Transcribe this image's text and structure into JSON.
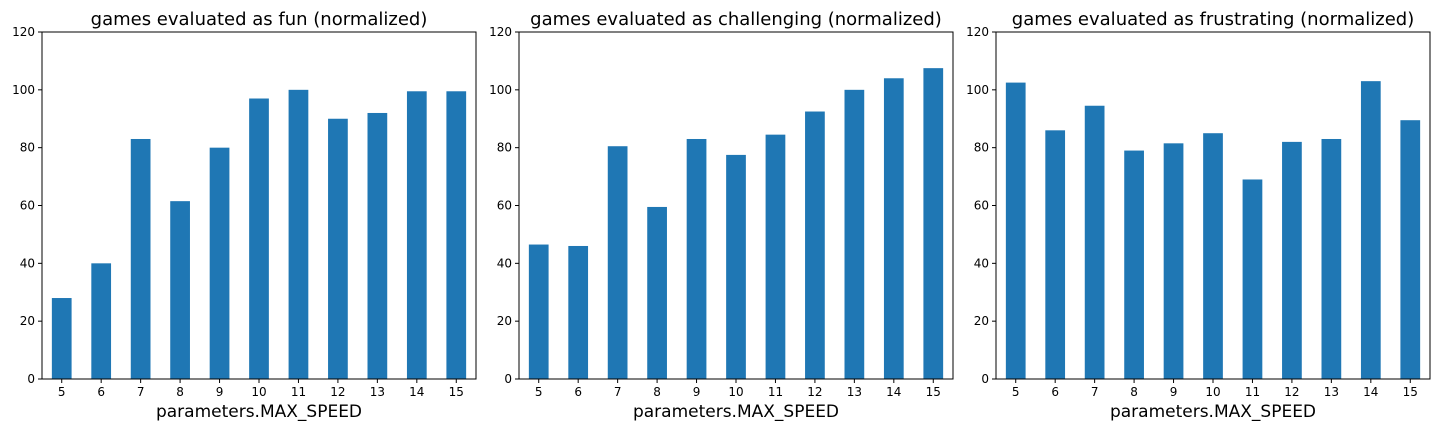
{
  "chart_data": [
    {
      "type": "bar",
      "title": "games evaluated as fun (normalized)",
      "xlabel": "parameters.MAX_SPEED",
      "ylabel": "",
      "categories": [
        "5",
        "6",
        "7",
        "8",
        "9",
        "10",
        "11",
        "12",
        "13",
        "14",
        "15"
      ],
      "values": [
        28,
        40,
        83,
        61.5,
        80,
        97,
        100,
        90,
        92,
        99.5,
        99.5
      ],
      "ylim": [
        0,
        120
      ],
      "yticks": [
        0,
        20,
        40,
        60,
        80,
        100,
        120
      ],
      "grid": false,
      "color": "#1f77b4"
    },
    {
      "type": "bar",
      "title": "games evaluated as challenging (normalized)",
      "xlabel": "parameters.MAX_SPEED",
      "ylabel": "",
      "categories": [
        "5",
        "6",
        "7",
        "8",
        "9",
        "10",
        "11",
        "12",
        "13",
        "14",
        "15"
      ],
      "values": [
        46.5,
        46,
        80.5,
        59.5,
        83,
        77.5,
        84.5,
        92.5,
        100,
        104,
        107.5
      ],
      "ylim": [
        0,
        120
      ],
      "yticks": [
        0,
        20,
        40,
        60,
        80,
        100,
        120
      ],
      "grid": false,
      "color": "#1f77b4"
    },
    {
      "type": "bar",
      "title": "games evaluated as frustrating (normalized)",
      "xlabel": "parameters.MAX_SPEED",
      "ylabel": "",
      "categories": [
        "5",
        "6",
        "7",
        "8",
        "9",
        "10",
        "11",
        "12",
        "13",
        "14",
        "15"
      ],
      "values": [
        102.5,
        86,
        94.5,
        79,
        81.5,
        85,
        69,
        82,
        83,
        103,
        89.5
      ],
      "ylim": [
        0,
        120
      ],
      "yticks": [
        0,
        20,
        40,
        60,
        80,
        100,
        120
      ],
      "grid": false,
      "color": "#1f77b4"
    }
  ]
}
